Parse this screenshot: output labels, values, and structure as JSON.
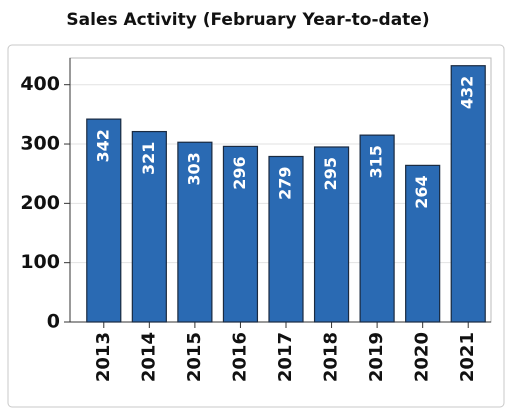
{
  "chart_data": {
    "type": "bar",
    "title": "Sales Activity (February Year-to-date)",
    "categories": [
      "2013",
      "2014",
      "2015",
      "2016",
      "2017",
      "2018",
      "2019",
      "2020",
      "2021"
    ],
    "values": [
      342,
      321,
      303,
      296,
      279,
      295,
      315,
      264,
      432
    ],
    "color": "#2a6ab3",
    "ylim": [
      0,
      445
    ],
    "yticks": [
      0,
      100,
      200,
      300,
      400
    ],
    "grid": true
  }
}
